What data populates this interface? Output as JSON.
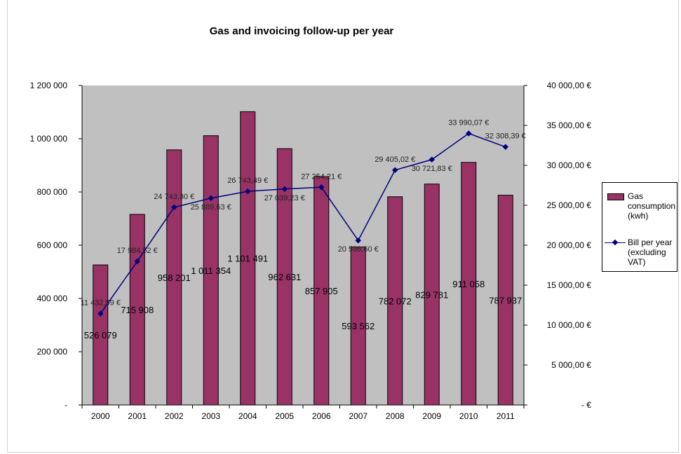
{
  "chart_data": {
    "type": "bar",
    "title": "Gas and invoicing follow-up per year",
    "categories": [
      "2000",
      "2001",
      "2002",
      "2003",
      "2004",
      "2005",
      "2006",
      "2007",
      "2008",
      "2009",
      "2010",
      "2011"
    ],
    "series": [
      {
        "name": "Gas consumption (kwh)",
        "type": "bar",
        "axis": "left",
        "color": "#993366",
        "values": [
          526079,
          715908,
          958201,
          1011354,
          1101491,
          962631,
          857905,
          593562,
          782072,
          829781,
          911058,
          787937
        ],
        "labels": [
          "526 079",
          "715 908",
          "958 201",
          "1 011 354",
          "1 101 491",
          "962 631",
          "857 905",
          "593 562",
          "782 072",
          "829 781",
          "911 058",
          "787 937"
        ]
      },
      {
        "name": "Bill per year (excluding VAT)",
        "type": "line",
        "axis": "right",
        "color": "#000080",
        "values": [
          11432.59,
          17984.52,
          24743.3,
          25889.63,
          26743.49,
          27039.23,
          27254.21,
          20596.6,
          29405.02,
          30721.83,
          33990.07,
          32308.39
        ],
        "labels": [
          "11 432,59 €",
          "17 984,52 €",
          "24 743,30 €",
          "25 889,63 €",
          "26 743,49 €",
          "27 039,23 €",
          "27 254,21 €",
          "20 596,60 €",
          "29 405,02 €",
          "30 721,83 €",
          "33 990,07 €",
          "32 308,39 €"
        ]
      }
    ],
    "y_left": {
      "ylim": [
        0,
        1200000
      ],
      "ticks": [
        0,
        200000,
        400000,
        600000,
        800000,
        1000000,
        1200000
      ],
      "tick_labels": [
        "-",
        "200 000",
        "400 000",
        "600 000",
        "800 000",
        "1 000 000",
        "1 200 000"
      ]
    },
    "y_right": {
      "ylim": [
        0,
        40000
      ],
      "ticks": [
        0,
        5000,
        10000,
        15000,
        20000,
        25000,
        30000,
        35000,
        40000
      ],
      "tick_labels": [
        "-   €",
        "5 000,00 €",
        "10 000,00 €",
        "15 000,00 €",
        "20 000,00 €",
        "25 000,00 €",
        "30 000,00 €",
        "35 000,00 €",
        "40 000,00 €"
      ]
    },
    "plot_background": "#c0c0c0",
    "grid": false,
    "legend_position": "right"
  },
  "legend": {
    "gas_label": "Gas consumption (kwh)",
    "bill_label": "Bill per year (excluding VAT)"
  }
}
